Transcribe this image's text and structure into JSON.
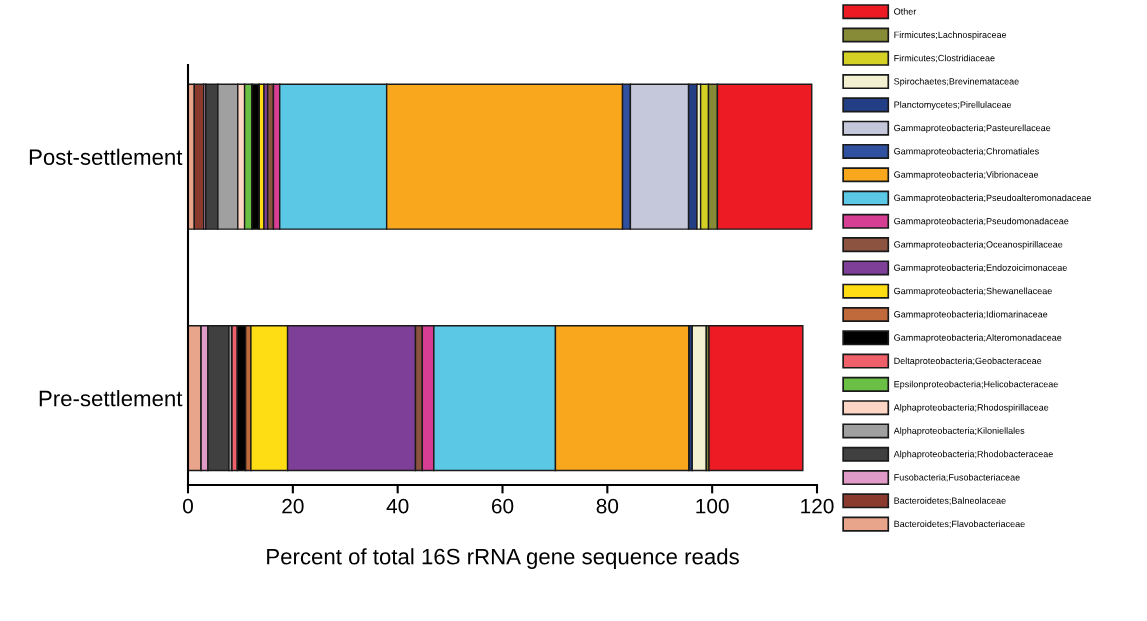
{
  "chart_data": {
    "type": "bar",
    "orientation": "horizontal",
    "stacked": true,
    "categories": [
      "Post-settlement",
      "Pre-settlement"
    ],
    "xlabel": "Percent of total 16S rRNA gene sequence reads",
    "xlim": [
      0,
      120
    ],
    "xticks": [
      0,
      20,
      40,
      60,
      80,
      100,
      120
    ],
    "grid": false,
    "legend": "right",
    "series": [
      {
        "name": "Bacteroidetes;Flavobacteriaceae",
        "color": "#e8a58c",
        "values": [
          1.2,
          2.5
        ]
      },
      {
        "name": "Bacteroidetes;Balneolaceae",
        "color": "#8b3a2e",
        "values": [
          1.8,
          0
        ]
      },
      {
        "name": "Fusobacteria;Fusobacteriaceae",
        "color": "#e09ac8",
        "values": [
          0.4,
          1.3
        ]
      },
      {
        "name": "Alphaproteobacteria;Rhodobacteraceae",
        "color": "#404040",
        "values": [
          2.3,
          4.0
        ]
      },
      {
        "name": "Alphaproteobacteria;Kiloniellales",
        "color": "#a0a0a0",
        "values": [
          3.8,
          0.6
        ]
      },
      {
        "name": "Alphaproteobacteria;Rhodospirillaceae",
        "color": "#fcd5c4",
        "values": [
          1.3,
          0
        ]
      },
      {
        "name": "Epsilonproteobacteria;Helicobacteraceae",
        "color": "#6abf45",
        "values": [
          1.4,
          0
        ]
      },
      {
        "name": "Deltaproteobacteria;Geobacteraceae",
        "color": "#f0606a",
        "values": [
          0,
          1.0
        ]
      },
      {
        "name": "Gammaproteobacteria;Alteromonadaceae",
        "color": "#000000",
        "values": [
          1.4,
          1.6
        ]
      },
      {
        "name": "Gammaproteobacteria;Idiomarinaceae",
        "color": "#c06a3c",
        "values": [
          0,
          1.0
        ]
      },
      {
        "name": "Gammaproteobacteria;Shewanellaceae",
        "color": "#ffdd15",
        "values": [
          0.9,
          7.0
        ]
      },
      {
        "name": "Gammaproteobacteria;Endozoicimonaceae",
        "color": "#7e3f98",
        "values": [
          0.7,
          24.4
        ]
      },
      {
        "name": "Gammaproteobacteria;Oceanospirillaceae",
        "color": "#8b5340",
        "values": [
          1.1,
          1.3
        ]
      },
      {
        "name": "Gammaproteobacteria;Pseudomonadaceae",
        "color": "#d53e93",
        "values": [
          1.2,
          2.2
        ]
      },
      {
        "name": "Gammaproteobacteria;Pseudoalteromonadaceae",
        "color": "#5bc8e6",
        "values": [
          20.4,
          23.2
        ]
      },
      {
        "name": "Gammaproteobacteria;Vibrionaceae",
        "color": "#f9a81d",
        "values": [
          45.0,
          25.5
        ]
      },
      {
        "name": "Gammaproteobacteria;Chromatiales",
        "color": "#3050a0",
        "values": [
          1.5,
          0
        ]
      },
      {
        "name": "Gammaproteobacteria;Pasteurellaceae",
        "color": "#c5c7da",
        "values": [
          11.1,
          0
        ]
      },
      {
        "name": "Planctomycetes;Pirellulaceae",
        "color": "#223f85",
        "values": [
          1.6,
          0.6
        ]
      },
      {
        "name": "Spirochaetes;Brevinemataceae",
        "color": "#f3f0d2",
        "values": [
          0.7,
          2.7
        ]
      },
      {
        "name": "Firmicutes;Clostridiaceae",
        "color": "#d5d024",
        "values": [
          1.5,
          0
        ]
      },
      {
        "name": "Firmicutes;Lachnospiraceae",
        "color": "#878a37",
        "values": [
          1.7,
          0.5
        ]
      },
      {
        "name": "Other",
        "color": "#ed1c24",
        "values": [
          18.0,
          17.9
        ]
      }
    ]
  }
}
